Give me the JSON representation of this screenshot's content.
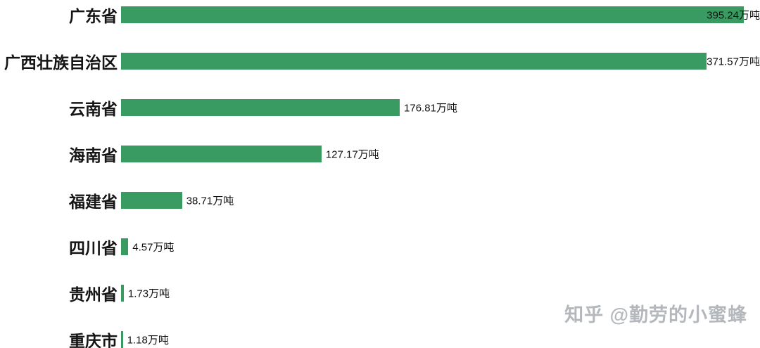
{
  "chart_data": {
    "type": "bar",
    "orientation": "horizontal",
    "title": "",
    "xlabel": "",
    "ylabel": "",
    "unit": "万吨",
    "grid": false,
    "legend": false,
    "bar_color": "#3a9b62",
    "xlim": [
      0,
      405
    ],
    "categories": [
      "广东省",
      "广西壮族自治区",
      "云南省",
      "海南省",
      "福建省",
      "四川省",
      "贵州省",
      "重庆市"
    ],
    "values": [
      395.24,
      371.57,
      176.81,
      127.17,
      38.71,
      4.57,
      1.73,
      1.18
    ],
    "value_labels": [
      "395.24万吨",
      "371.57万吨",
      "176.81万吨",
      "127.17万吨",
      "38.71万吨",
      "4.57万吨",
      "1.73万吨",
      "1.18万吨"
    ]
  },
  "watermark": {
    "text": "知乎 @勤劳的小蜜蜂",
    "color": "#b4b8bc"
  }
}
